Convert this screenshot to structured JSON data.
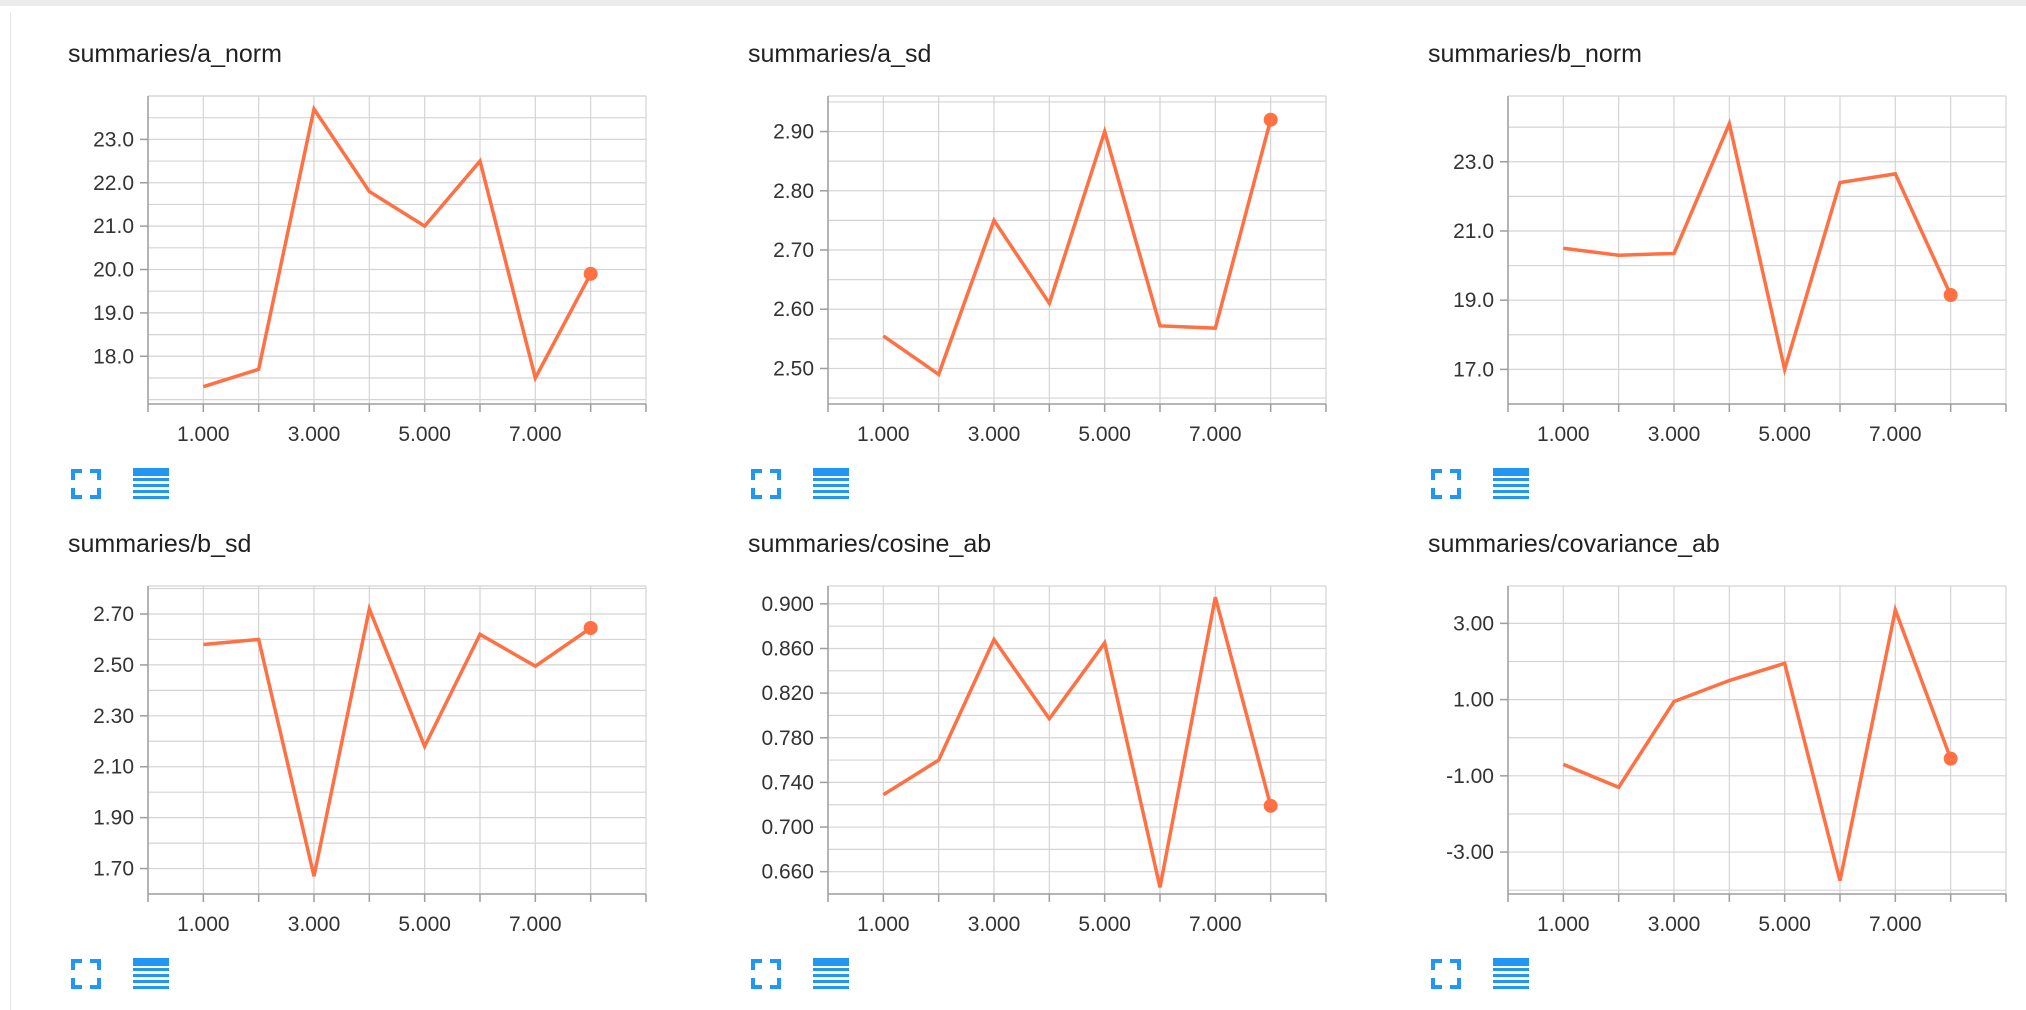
{
  "colors": {
    "series": "#ff7043",
    "grid": "#d4d4d4",
    "axis": "#9e9e9e",
    "icon": "#2196f3"
  },
  "icons": {
    "expand": "expand-icon",
    "data_table": "list-icon"
  },
  "chart_data": [
    {
      "type": "line",
      "title": "summaries/a_norm",
      "x": [
        1,
        2,
        3,
        4,
        5,
        6,
        7,
        8
      ],
      "series": [
        {
          "values": [
            17.3,
            17.7,
            23.7,
            21.8,
            21.0,
            22.5,
            17.5,
            19.9
          ]
        }
      ],
      "xlim": [
        0,
        9
      ],
      "ylim": [
        16.9,
        24.0
      ],
      "xticks": [
        "1.000",
        "3.000",
        "5.000",
        "7.000"
      ],
      "xtick_values": [
        1,
        3,
        5,
        7
      ],
      "yticks": [
        "18.0",
        "19.0",
        "20.0",
        "21.0",
        "22.0",
        "23.0"
      ],
      "ytick_values": [
        18,
        19,
        20,
        21,
        22,
        23
      ],
      "y_minor_step": 0.5,
      "grid": true
    },
    {
      "type": "line",
      "title": "summaries/a_sd",
      "x": [
        1,
        2,
        3,
        4,
        5,
        6,
        7,
        8
      ],
      "series": [
        {
          "values": [
            2.555,
            2.49,
            2.75,
            2.61,
            2.9,
            2.572,
            2.568,
            2.92
          ]
        }
      ],
      "xlim": [
        0,
        9
      ],
      "ylim": [
        2.44,
        2.96
      ],
      "xticks": [
        "1.000",
        "3.000",
        "5.000",
        "7.000"
      ],
      "xtick_values": [
        1,
        3,
        5,
        7
      ],
      "yticks": [
        "2.50",
        "2.60",
        "2.70",
        "2.80",
        "2.90"
      ],
      "ytick_values": [
        2.5,
        2.6,
        2.7,
        2.8,
        2.9
      ],
      "y_minor_step": 0.05,
      "grid": true
    },
    {
      "type": "line",
      "title": "summaries/b_norm",
      "x": [
        1,
        2,
        3,
        4,
        5,
        6,
        7,
        8
      ],
      "series": [
        {
          "values": [
            20.5,
            20.3,
            20.35,
            24.1,
            17.0,
            22.4,
            22.65,
            19.15
          ]
        }
      ],
      "xlim": [
        0,
        9
      ],
      "ylim": [
        16.0,
        24.9
      ],
      "xticks": [
        "1.000",
        "3.000",
        "5.000",
        "7.000"
      ],
      "xtick_values": [
        1,
        3,
        5,
        7
      ],
      "yticks": [
        "17.0",
        "19.0",
        "21.0",
        "23.0"
      ],
      "ytick_values": [
        17,
        19,
        21,
        23
      ],
      "y_minor_step": 1,
      "grid": true
    },
    {
      "type": "line",
      "title": "summaries/b_sd",
      "x": [
        1,
        2,
        3,
        4,
        5,
        6,
        7,
        8
      ],
      "series": [
        {
          "values": [
            2.58,
            2.6,
            1.67,
            2.72,
            2.18,
            2.62,
            2.495,
            2.645
          ]
        }
      ],
      "xlim": [
        0,
        9
      ],
      "ylim": [
        1.6,
        2.81
      ],
      "xticks": [
        "1.000",
        "3.000",
        "5.000",
        "7.000"
      ],
      "xtick_values": [
        1,
        3,
        5,
        7
      ],
      "yticks": [
        "1.70",
        "1.90",
        "2.10",
        "2.30",
        "2.50",
        "2.70"
      ],
      "ytick_values": [
        1.7,
        1.9,
        2.1,
        2.3,
        2.5,
        2.7
      ],
      "y_minor_step": 0.1,
      "grid": true
    },
    {
      "type": "line",
      "title": "summaries/cosine_ab",
      "x": [
        1,
        2,
        3,
        4,
        5,
        6,
        7,
        8
      ],
      "series": [
        {
          "values": [
            0.729,
            0.76,
            0.868,
            0.797,
            0.865,
            0.646,
            0.906,
            0.719
          ]
        }
      ],
      "xlim": [
        0,
        9
      ],
      "ylim": [
        0.64,
        0.916
      ],
      "xticks": [
        "1.000",
        "3.000",
        "5.000",
        "7.000"
      ],
      "xtick_values": [
        1,
        3,
        5,
        7
      ],
      "yticks": [
        "0.660",
        "0.700",
        "0.740",
        "0.780",
        "0.820",
        "0.860",
        "0.900"
      ],
      "ytick_values": [
        0.66,
        0.7,
        0.74,
        0.78,
        0.82,
        0.86,
        0.9
      ],
      "y_minor_step": 0.02,
      "grid": true
    },
    {
      "type": "line",
      "title": "summaries/covariance_ab",
      "x": [
        1,
        2,
        3,
        4,
        5,
        6,
        7,
        8
      ],
      "series": [
        {
          "values": [
            -0.7,
            -1.3,
            0.95,
            1.5,
            1.95,
            -3.75,
            3.35,
            -0.55
          ]
        }
      ],
      "xlim": [
        0,
        9
      ],
      "ylim": [
        -4.1,
        3.98
      ],
      "xticks": [
        "1.000",
        "3.000",
        "5.000",
        "7.000"
      ],
      "xtick_values": [
        1,
        3,
        5,
        7
      ],
      "yticks": [
        "-3.00",
        "-1.00",
        "1.00",
        "3.00"
      ],
      "ytick_values": [
        -3,
        -1,
        1,
        3
      ],
      "y_minor_step": 1,
      "grid": true
    }
  ]
}
